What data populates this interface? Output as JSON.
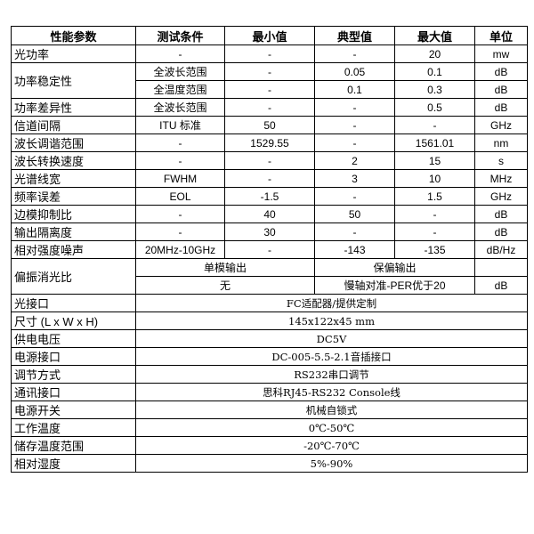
{
  "header": [
    "性能参数",
    "测试条件",
    "最小值",
    "典型值",
    "最大值",
    "单位"
  ],
  "spec_rows": [
    {
      "param": "光功率",
      "cond": "-",
      "min": "-",
      "typ": "-",
      "max": "20",
      "unit": "mw"
    },
    {
      "param": "功率稳定性",
      "cond": "全波长范围",
      "min": "-",
      "typ": "0.05",
      "max": "0.1",
      "unit": "dB",
      "rowspan": 2
    },
    {
      "cond": "全温度范围",
      "min": "-",
      "typ": "0.1",
      "max": "0.3",
      "unit": "dB"
    },
    {
      "param": "功率差异性",
      "cond": "全波长范围",
      "min": "-",
      "typ": "-",
      "max": "0.5",
      "unit": "dB"
    },
    {
      "param": "信道间隔",
      "cond": "ITU 标准",
      "min": "50",
      "typ": "-",
      "max": "-",
      "unit": "GHz"
    },
    {
      "param": "波长调谐范围",
      "cond": "-",
      "min": "1529.55",
      "typ": "-",
      "max": "1561.01",
      "unit": "nm"
    },
    {
      "param": "波长转换速度",
      "cond": "-",
      "min": "-",
      "typ": "2",
      "max": "15",
      "unit": "s"
    },
    {
      "param": "光谱线宽",
      "cond": "FWHM",
      "min": "-",
      "typ": "3",
      "max": "10",
      "unit": "MHz"
    },
    {
      "param": "频率误差",
      "cond": "EOL",
      "min": "-1.5",
      "typ": "-",
      "max": "1.5",
      "unit": "GHz"
    },
    {
      "param": "边模抑制比",
      "cond": "-",
      "min": "40",
      "typ": "50",
      "max": "-",
      "unit": "dB"
    },
    {
      "param": "输出隔离度",
      "cond": "-",
      "min": "30",
      "typ": "-",
      "max": "-",
      "unit": "dB"
    },
    {
      "param": "相对强度噪声",
      "cond": "20MHz-10GHz",
      "min": "-",
      "typ": "-143",
      "max": "-135",
      "unit": "dB/Hz"
    }
  ],
  "polarization": {
    "param": "偏振消光比",
    "single_mode_label": "单模输出",
    "pm_label": "保偏输出",
    "single_mode_value": "无",
    "pm_value": "慢轴对准-PER优于20",
    "unit": "dB"
  },
  "general_rows": [
    {
      "param": "光接口",
      "value": "FC适配器/提供定制"
    },
    {
      "param": "尺寸 (L x W x H)",
      "value": "145x122x45 mm"
    },
    {
      "param": "供电电压",
      "value": "DC5V"
    },
    {
      "param": "电源接口",
      "value": "DC-005-5.5-2.1音插接口"
    },
    {
      "param": "调节方式",
      "value": "RS232串口调节"
    },
    {
      "param": "通讯接口",
      "value": "思科RJ45-RS232   Console线"
    },
    {
      "param": "电源开关",
      "value": "机械自锁式"
    },
    {
      "param": "工作温度",
      "value": "0℃-50℃"
    },
    {
      "param": "储存温度范围",
      "value": "-20℃-70℃"
    },
    {
      "param": "相对湿度",
      "value": "5%-90%"
    }
  ]
}
